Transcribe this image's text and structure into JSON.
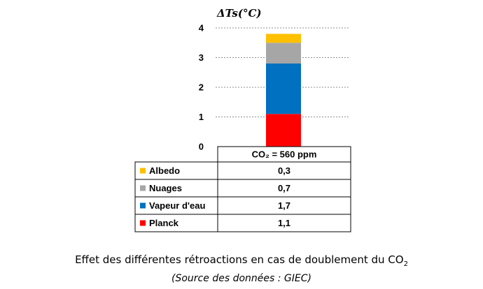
{
  "chart_data": {
    "type": "bar",
    "stacked": true,
    "ylabel": "ΔTs(°C)",
    "ylim": [
      0,
      4
    ],
    "yticks": [
      0,
      1,
      2,
      3,
      4
    ],
    "grid": true,
    "category": "CO₂ = 560 ppm",
    "series": [
      {
        "name": "Planck",
        "value": 1.1,
        "label": "1,1",
        "color": "#ff0000"
      },
      {
        "name": "Vapeur d'eau",
        "value": 1.7,
        "label": "1,7",
        "color": "#0070c0"
      },
      {
        "name": "Nuages",
        "value": 0.7,
        "label": "0,7",
        "color": "#a6a6a6"
      },
      {
        "name": "Albedo",
        "value": 0.3,
        "label": "0,3",
        "color": "#ffc000"
      }
    ],
    "table_rows_order": [
      "Albedo",
      "Nuages",
      "Vapeur d'eau",
      "Planck"
    ]
  },
  "caption": {
    "title_main": "Effet des différentes rétroactions en cas de doublement du CO",
    "title_sub": "2",
    "source": "(Source des données : GIEC)"
  }
}
